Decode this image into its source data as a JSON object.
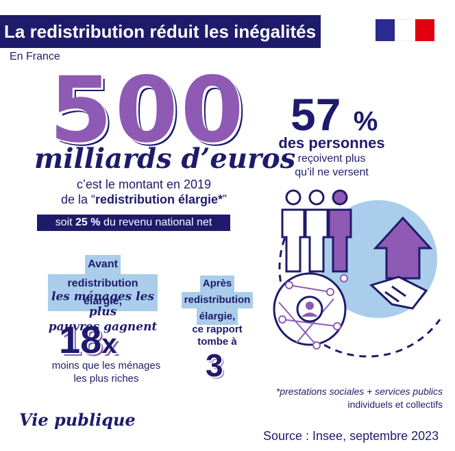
{
  "header": {
    "title": "La redistribution réduit les inégalités",
    "subtitle": "En France"
  },
  "left": {
    "big_number": "500",
    "unit": "milliards d’euros",
    "montant_line1": "c’est le montant en 2019",
    "montant_line2_prefix": "de la “",
    "montant_line2_bold": "redistribution élargie*",
    "montant_line2_suffix": "”",
    "soit_prefix": "soit ",
    "soit_bold": "25 %",
    "soit_suffix": " du revenu national net",
    "avant_line1": "Avant",
    "avant_line2": "redistribution élargie,",
    "menages_line1": "les ménages les plus",
    "menages_line2": "pauvres gagnent",
    "ratio_before": "18",
    "ratio_before_suffix": "x",
    "moins_line1": "moins que les ménages",
    "moins_line2": "les plus riches"
  },
  "middle": {
    "apres_line1": "Après",
    "apres_line2": "redistribution",
    "apres_line3": "élargie,",
    "rapport_line1": "ce rapport",
    "rapport_line2": "tombe à",
    "ratio_after": "3"
  },
  "right": {
    "percent": "57",
    "percent_unit": "%",
    "personnes": "des personnes",
    "recoivent_line1": "reçoivent plus",
    "recoivent_line2": "qu’il ne versent"
  },
  "footer": {
    "footnote_line1": "*prestations sociales + services publics",
    "footnote_line2": "individuels et collectifs",
    "brand": "Vie publique",
    "source": "Source : Insee,  septembre 2023"
  },
  "colors": {
    "navy": "#1e1b6b",
    "purple": "#8e5ab4",
    "light_blue": "#a9cdea",
    "flag_blue": "#2a2a8f",
    "flag_red": "#e1000f"
  },
  "icons": [
    "republique-francaise-logo",
    "people-icon",
    "arrow-up-icon",
    "handshake-icon",
    "network-icon",
    "person-icon"
  ]
}
